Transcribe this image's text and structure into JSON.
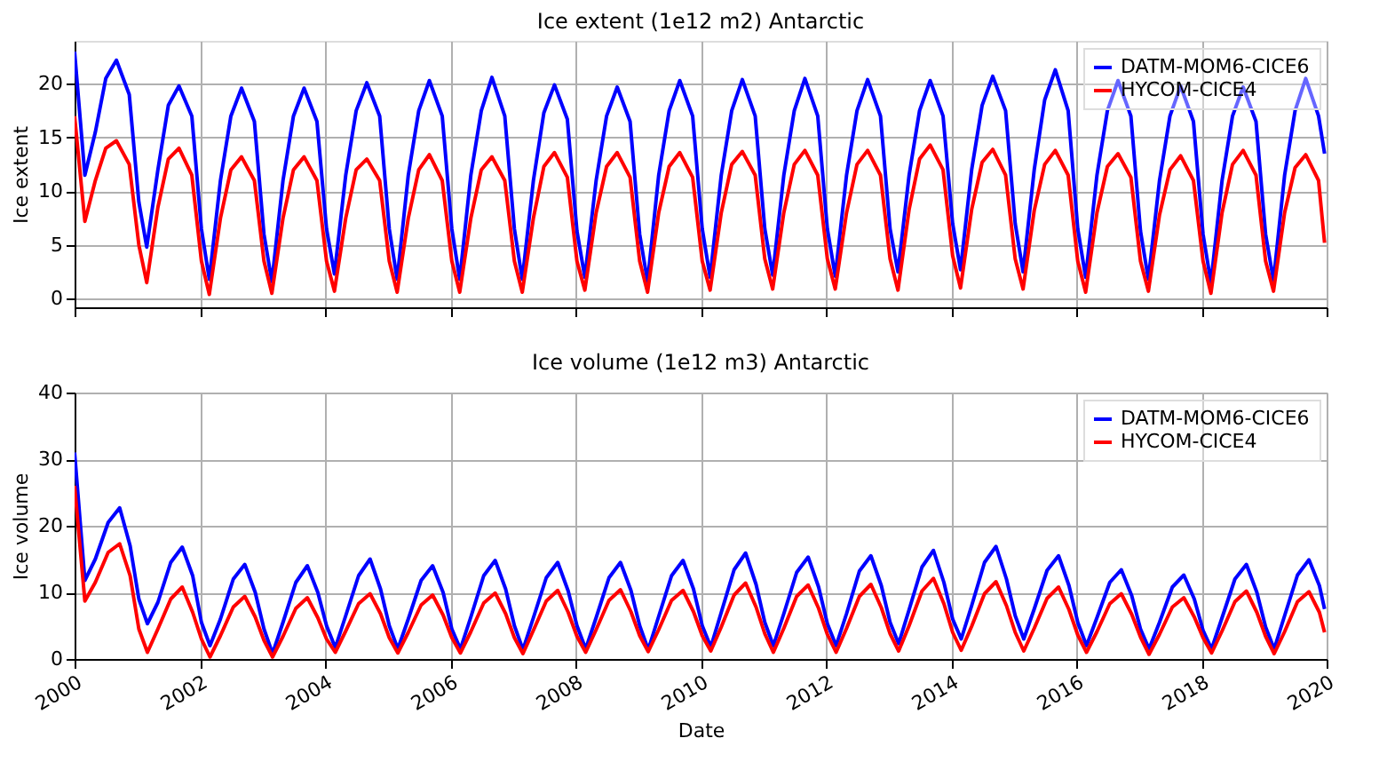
{
  "chart_data": [
    {
      "type": "line",
      "title": "Ice extent (1e12 m2) Antarctic",
      "ylabel": "Ice extent",
      "xlim": [
        "2000-01-01",
        "2020-01-01"
      ],
      "xticks": [
        "2000",
        "2002",
        "2004",
        "2006",
        "2008",
        "2010",
        "2012",
        "2014",
        "2016",
        "2018",
        "2020"
      ],
      "ylim": [
        -0.8,
        24
      ],
      "yticks": [
        0,
        5,
        10,
        15,
        20
      ],
      "tick_labels": "y",
      "grid": true,
      "legend": "top right",
      "line_style": "solid",
      "marker": "none",
      "x": [
        "2000-01-01",
        "2000-03-01",
        "2000-05-01",
        "2000-07-01",
        "2000-09-01",
        "2000-11-15",
        "2001-01-10",
        "2001-02-25",
        "2001-05-01",
        "2001-07-01",
        "2001-09-01",
        "2001-11-15",
        "2002-01-10",
        "2002-02-25",
        "2002-05-01",
        "2002-07-01",
        "2002-09-01",
        "2002-11-15",
        "2003-01-10",
        "2003-02-25",
        "2003-05-01",
        "2003-07-01",
        "2003-09-01",
        "2003-11-15",
        "2004-01-10",
        "2004-02-25",
        "2004-05-01",
        "2004-07-01",
        "2004-09-01",
        "2004-11-15",
        "2005-01-10",
        "2005-02-25",
        "2005-05-01",
        "2005-07-01",
        "2005-09-01",
        "2005-11-15",
        "2006-01-10",
        "2006-02-25",
        "2006-05-01",
        "2006-07-01",
        "2006-09-01",
        "2006-11-15",
        "2007-01-10",
        "2007-02-25",
        "2007-05-01",
        "2007-07-01",
        "2007-09-01",
        "2007-11-15",
        "2008-01-10",
        "2008-02-25",
        "2008-05-01",
        "2008-07-01",
        "2008-09-01",
        "2008-11-15",
        "2009-01-10",
        "2009-02-25",
        "2009-05-01",
        "2009-07-01",
        "2009-09-01",
        "2009-11-15",
        "2010-01-10",
        "2010-02-25",
        "2010-05-01",
        "2010-07-01",
        "2010-09-01",
        "2010-11-15",
        "2011-01-10",
        "2011-02-25",
        "2011-05-01",
        "2011-07-01",
        "2011-09-01",
        "2011-11-15",
        "2012-01-10",
        "2012-02-25",
        "2012-05-01",
        "2012-07-01",
        "2012-09-01",
        "2012-11-15",
        "2013-01-10",
        "2013-02-25",
        "2013-05-01",
        "2013-07-01",
        "2013-09-01",
        "2013-11-15",
        "2014-01-10",
        "2014-02-25",
        "2014-05-01",
        "2014-07-01",
        "2014-09-01",
        "2014-11-15",
        "2015-01-10",
        "2015-02-25",
        "2015-05-01",
        "2015-07-01",
        "2015-09-01",
        "2015-11-15",
        "2016-01-10",
        "2016-02-25",
        "2016-05-01",
        "2016-07-01",
        "2016-09-01",
        "2016-11-15",
        "2017-01-10",
        "2017-02-25",
        "2017-05-01",
        "2017-07-01",
        "2017-09-01",
        "2017-11-15",
        "2018-01-10",
        "2018-02-25",
        "2018-05-01",
        "2018-07-01",
        "2018-09-01",
        "2018-11-15",
        "2019-01-10",
        "2019-02-25",
        "2019-05-01",
        "2019-07-01",
        "2019-09-01",
        "2019-11-15",
        "2019-12-20"
      ],
      "series": [
        {
          "name": "DATM-MOM6-CICE6",
          "color": "#0000ff",
          "values": [
            23,
            11.5,
            15.5,
            20.5,
            22.2,
            19,
            9,
            4.8,
            12,
            18,
            19.8,
            17,
            6.5,
            1.8,
            11,
            17,
            19.6,
            16.5,
            6,
            1.6,
            11,
            17,
            19.6,
            16.5,
            6.5,
            2.3,
            11.5,
            17.5,
            20.1,
            17,
            6.5,
            1.8,
            11.5,
            17.5,
            20.3,
            17,
            6.5,
            1.8,
            11.5,
            17.5,
            20.6,
            17,
            6.5,
            1.8,
            11,
            17.3,
            19.9,
            16.7,
            6.3,
            2.0,
            11,
            17,
            19.7,
            16.5,
            6,
            1.6,
            11.5,
            17.5,
            20.3,
            17,
            6.5,
            2.0,
            11.5,
            17.5,
            20.4,
            17,
            6.5,
            2.2,
            11.5,
            17.5,
            20.5,
            17,
            6.5,
            2.1,
            11.5,
            17.5,
            20.4,
            17,
            6.5,
            2.5,
            11.5,
            17.5,
            20.3,
            17,
            7,
            2.7,
            12,
            18,
            20.7,
            17.5,
            7,
            2.5,
            12,
            18.5,
            21.3,
            17.5,
            6.5,
            2.0,
            11.5,
            17.5,
            20.3,
            17,
            6.3,
            1.8,
            11,
            17,
            19.8,
            16.5,
            6,
            1.5,
            11,
            17,
            19.7,
            16.5,
            6,
            1.7,
            11.5,
            17.5,
            20.5,
            17,
            13.5
          ]
        },
        {
          "name": "HYCOM-CICE4",
          "color": "#ff0000",
          "values": [
            17,
            7.2,
            11,
            14,
            14.7,
            12.5,
            5,
            1.5,
            8.5,
            13,
            14.0,
            11.5,
            3.5,
            0.4,
            7.5,
            12,
            13.2,
            11,
            3.5,
            0.5,
            7.5,
            12,
            13.2,
            11,
            3.5,
            0.7,
            7.5,
            12,
            13.0,
            11,
            3.5,
            0.6,
            7.5,
            12,
            13.4,
            11,
            3.5,
            0.6,
            7.5,
            12,
            13.2,
            11,
            3.5,
            0.6,
            7.5,
            12.3,
            13.6,
            11.3,
            3.5,
            0.8,
            8,
            12.3,
            13.6,
            11.3,
            3.5,
            0.6,
            8,
            12.3,
            13.6,
            11.3,
            3.5,
            0.8,
            8,
            12.5,
            13.7,
            11.5,
            3.7,
            0.9,
            8,
            12.5,
            13.8,
            11.5,
            3.7,
            0.9,
            8,
            12.5,
            13.8,
            11.5,
            3.7,
            0.8,
            8.3,
            13,
            14.3,
            12,
            4,
            1.0,
            8.3,
            12.7,
            13.9,
            11.5,
            3.7,
            0.9,
            8.2,
            12.5,
            13.8,
            11.5,
            3.5,
            0.6,
            8,
            12.3,
            13.5,
            11.3,
            3.5,
            0.7,
            7.8,
            12,
            13.3,
            11,
            3.5,
            0.5,
            8,
            12.5,
            13.8,
            11.5,
            3.5,
            0.7,
            8,
            12.2,
            13.4,
            11,
            5.2
          ]
        }
      ]
    },
    {
      "type": "line",
      "title": "Ice volume (1e12 m3) Antarctic",
      "xlabel": "Date",
      "ylabel": "Ice volume",
      "xlim": [
        "2000-01-01",
        "2020-01-01"
      ],
      "xticks": [
        "2000",
        "2002",
        "2004",
        "2006",
        "2008",
        "2010",
        "2012",
        "2014",
        "2016",
        "2018",
        "2020"
      ],
      "ylim": [
        0,
        40
      ],
      "yticks": [
        0,
        10,
        20,
        30,
        40
      ],
      "grid": true,
      "legend": "top right",
      "line_style": "solid",
      "marker": "none",
      "x": [
        "2000-01-01",
        "2000-03-01",
        "2000-05-01",
        "2000-07-15",
        "2000-09-20",
        "2000-11-20",
        "2001-01-10",
        "2001-03-01",
        "2001-05-01",
        "2001-07-15",
        "2001-09-20",
        "2001-11-20",
        "2002-01-10",
        "2002-03-01",
        "2002-05-01",
        "2002-07-15",
        "2002-09-20",
        "2002-11-20",
        "2003-01-10",
        "2003-03-01",
        "2003-05-01",
        "2003-07-15",
        "2003-09-20",
        "2003-11-20",
        "2004-01-10",
        "2004-03-01",
        "2004-05-01",
        "2004-07-15",
        "2004-09-20",
        "2004-11-20",
        "2005-01-10",
        "2005-03-01",
        "2005-05-01",
        "2005-07-15",
        "2005-09-20",
        "2005-11-20",
        "2006-01-10",
        "2006-03-01",
        "2006-05-01",
        "2006-07-15",
        "2006-09-20",
        "2006-11-20",
        "2007-01-10",
        "2007-03-01",
        "2007-05-01",
        "2007-07-15",
        "2007-09-20",
        "2007-11-20",
        "2008-01-10",
        "2008-03-01",
        "2008-05-01",
        "2008-07-15",
        "2008-09-20",
        "2008-11-20",
        "2009-01-10",
        "2009-03-01",
        "2009-05-01",
        "2009-07-15",
        "2009-09-20",
        "2009-11-20",
        "2010-01-10",
        "2010-03-01",
        "2010-05-01",
        "2010-07-15",
        "2010-09-20",
        "2010-11-20",
        "2011-01-10",
        "2011-03-01",
        "2011-05-01",
        "2011-07-15",
        "2011-09-20",
        "2011-11-20",
        "2012-01-10",
        "2012-03-01",
        "2012-05-01",
        "2012-07-15",
        "2012-09-20",
        "2012-11-20",
        "2013-01-10",
        "2013-03-01",
        "2013-05-01",
        "2013-07-15",
        "2013-09-20",
        "2013-11-20",
        "2014-01-10",
        "2014-03-01",
        "2014-05-01",
        "2014-07-15",
        "2014-09-20",
        "2014-11-20",
        "2015-01-10",
        "2015-03-01",
        "2015-05-01",
        "2015-07-15",
        "2015-09-20",
        "2015-11-20",
        "2016-01-10",
        "2016-03-01",
        "2016-05-01",
        "2016-07-15",
        "2016-09-20",
        "2016-11-20",
        "2017-01-10",
        "2017-03-01",
        "2017-05-01",
        "2017-07-15",
        "2017-09-20",
        "2017-11-20",
        "2018-01-10",
        "2018-03-01",
        "2018-05-01",
        "2018-07-15",
        "2018-09-20",
        "2018-11-20",
        "2019-01-10",
        "2019-03-01",
        "2019-05-01",
        "2019-07-15",
        "2019-09-20",
        "2019-11-20",
        "2019-12-20"
      ],
      "series": [
        {
          "name": "DATM-MOM6-CICE6",
          "color": "#0000ff",
          "values": [
            31,
            11.8,
            15,
            20.5,
            22.7,
            17,
            9,
            5.3,
            8.5,
            14.5,
            16.8,
            12.5,
            5.5,
            2.0,
            6,
            12,
            14.2,
            10,
            4.5,
            0.8,
            5.5,
            11.5,
            14,
            10,
            5,
            1.7,
            6.5,
            12.5,
            15,
            10.5,
            5,
            1.5,
            6,
            11.8,
            14,
            10,
            4.5,
            1.5,
            6.3,
            12.5,
            14.8,
            10.5,
            5,
            1.4,
            6.2,
            12.2,
            14.5,
            10.2,
            5,
            1.5,
            6.2,
            12.2,
            14.5,
            10.3,
            5,
            1.4,
            6.4,
            12.5,
            14.8,
            10.5,
            5,
            1.8,
            7,
            13.4,
            15.9,
            11.2,
            5.5,
            2.0,
            6.8,
            13,
            15.3,
            10.8,
            5.3,
            2.0,
            6.8,
            13.2,
            15.5,
            11,
            5.5,
            2.3,
            7.4,
            13.8,
            16.3,
            11.5,
            6,
            3.0,
            8,
            14.5,
            16.9,
            12,
            6.5,
            3.0,
            7.5,
            13.3,
            15.5,
            11,
            5.5,
            2.0,
            6.2,
            11.5,
            13.4,
            9.5,
            4.5,
            1.5,
            5.5,
            10.8,
            12.6,
            9,
            4.3,
            1.5,
            6.2,
            12,
            14.2,
            10,
            4.8,
            1.5,
            6.5,
            12.6,
            14.9,
            11,
            7.5
          ]
        },
        {
          "name": "HYCOM-CICE4",
          "color": "#ff0000",
          "values": [
            26,
            8.7,
            11.5,
            16,
            17.3,
            12.5,
            4.5,
            1.0,
            4.5,
            9,
            10.8,
            7,
            3,
            0.3,
            3.5,
            7.8,
            9.4,
            6.3,
            2.8,
            0.3,
            3.4,
            7.6,
            9.2,
            6.2,
            3,
            1.0,
            4.2,
            8.3,
            9.8,
            6.8,
            3.2,
            0.9,
            4,
            8.1,
            9.6,
            6.6,
            3.2,
            0.9,
            4.1,
            8.4,
            9.9,
            6.8,
            3.2,
            0.8,
            4.3,
            8.7,
            10.3,
            7,
            3.4,
            1.0,
            4.4,
            8.8,
            10.4,
            7.1,
            3.5,
            1.1,
            4.4,
            8.8,
            10.3,
            7.1,
            3.5,
            1.2,
            4.8,
            9.6,
            11.4,
            7.8,
            3.8,
            1.0,
            4.6,
            9.4,
            11.1,
            7.6,
            3.7,
            1.0,
            4.6,
            9.4,
            11.2,
            7.7,
            3.8,
            1.2,
            5,
            10.2,
            12.1,
            8.3,
            4,
            1.3,
            4.9,
            9.8,
            11.6,
            8,
            4,
            1.2,
            4.6,
            9.1,
            10.8,
            7.4,
            3.6,
            1.0,
            4.1,
            8.3,
            9.8,
            6.7,
            3.3,
            0.7,
            3.7,
            7.8,
            9.2,
            6.3,
            3.2,
            0.9,
            4.2,
            8.6,
            10.2,
            7,
            3.4,
            0.8,
            4.1,
            8.6,
            10.1,
            7,
            4
          ]
        }
      ]
    }
  ]
}
